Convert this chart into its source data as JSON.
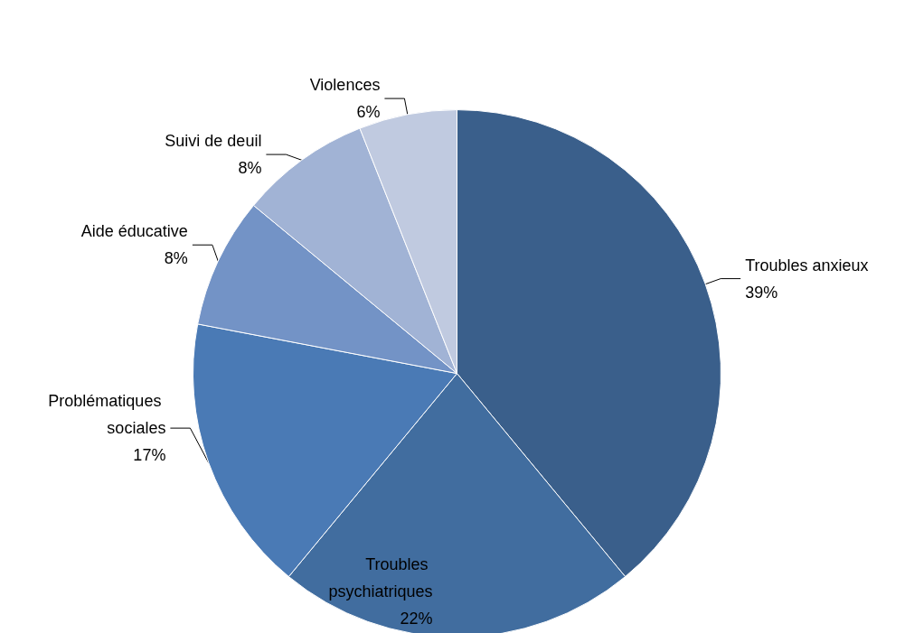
{
  "chart_data": {
    "type": "pie",
    "categories": [
      "Troubles anxieux",
      "Troubles psychiatriques",
      "Problématiques sociales",
      "Aide éducative",
      "Suivi de deuil",
      "Violences"
    ],
    "values": [
      39,
      22,
      17,
      8,
      8,
      6
    ],
    "value_labels": [
      "39%",
      "22%",
      "17%",
      "8%",
      "8%",
      "6%"
    ],
    "colors": [
      "#3a5f8b",
      "#416d9f",
      "#4a7ab5",
      "#7393c6",
      "#a1b3d5",
      "#c0cae0"
    ],
    "legend": false
  }
}
